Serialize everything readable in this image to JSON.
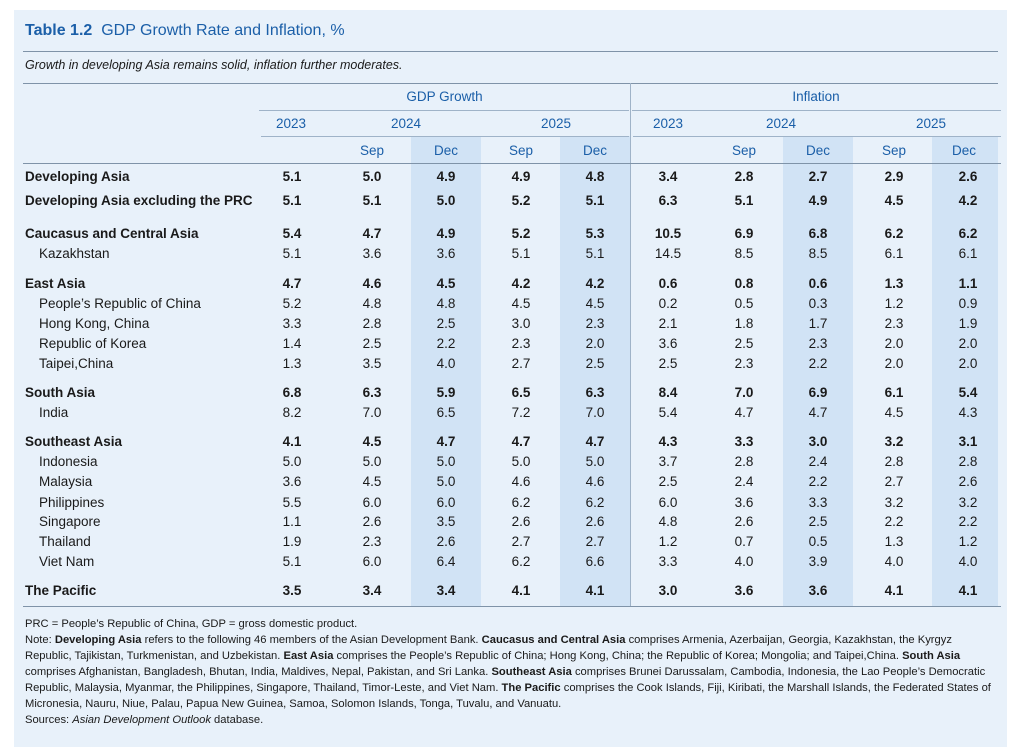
{
  "title": {
    "number": "Table 1.2",
    "text": "GDP Growth Rate and Inflation, %"
  },
  "subtitle": "Growth in developing Asia remains solid, inflation further moderates.",
  "groups": {
    "gdp": "GDP Growth",
    "inflation": "Inflation"
  },
  "years": {
    "y2023": "2023",
    "y2024": "2024",
    "y2025": "2025"
  },
  "months": {
    "sep": "Sep",
    "dec": "Dec"
  },
  "rows": [
    {
      "label": "Developing Asia",
      "bold": true,
      "vals": [
        "5.1",
        "5.0",
        "4.9",
        "4.9",
        "4.8",
        "3.4",
        "2.8",
        "2.7",
        "2.9",
        "2.6"
      ]
    },
    {
      "label": "Developing Asia excluding the PRC",
      "bold": true,
      "vals": [
        "5.1",
        "5.1",
        "5.0",
        "5.2",
        "5.1",
        "6.3",
        "5.1",
        "4.9",
        "4.5",
        "4.2"
      ]
    },
    {
      "label": "Caucasus and Central Asia",
      "bold": true,
      "vals": [
        "5.4",
        "4.7",
        "4.9",
        "5.2",
        "5.3",
        "10.5",
        "6.9",
        "6.8",
        "6.2",
        "6.2"
      ]
    },
    {
      "label": "Kazakhstan",
      "bold": false,
      "vals": [
        "5.1",
        "3.6",
        "3.6",
        "5.1",
        "5.1",
        "14.5",
        "8.5",
        "8.5",
        "6.1",
        "6.1"
      ]
    },
    {
      "label": "East Asia",
      "bold": true,
      "vals": [
        "4.7",
        "4.6",
        "4.5",
        "4.2",
        "4.2",
        "0.6",
        "0.8",
        "0.6",
        "1.3",
        "1.1"
      ]
    },
    {
      "label": "People’s Republic of China",
      "bold": false,
      "vals": [
        "5.2",
        "4.8",
        "4.8",
        "4.5",
        "4.5",
        "0.2",
        "0.5",
        "0.3",
        "1.2",
        "0.9"
      ]
    },
    {
      "label": "Hong Kong, China",
      "bold": false,
      "vals": [
        "3.3",
        "2.8",
        "2.5",
        "3.0",
        "2.3",
        "2.1",
        "1.8",
        "1.7",
        "2.3",
        "1.9"
      ]
    },
    {
      "label": "Republic of Korea",
      "bold": false,
      "vals": [
        "1.4",
        "2.5",
        "2.2",
        "2.3",
        "2.0",
        "3.6",
        "2.5",
        "2.3",
        "2.0",
        "2.0"
      ]
    },
    {
      "label": "Taipei,China",
      "bold": false,
      "vals": [
        "1.3",
        "3.5",
        "4.0",
        "2.7",
        "2.5",
        "2.5",
        "2.3",
        "2.2",
        "2.0",
        "2.0"
      ]
    },
    {
      "label": "South Asia",
      "bold": true,
      "vals": [
        "6.8",
        "6.3",
        "5.9",
        "6.5",
        "6.3",
        "8.4",
        "7.0",
        "6.9",
        "6.1",
        "5.4"
      ]
    },
    {
      "label": "India",
      "bold": false,
      "vals": [
        "8.2",
        "7.0",
        "6.5",
        "7.2",
        "7.0",
        "5.4",
        "4.7",
        "4.7",
        "4.5",
        "4.3"
      ]
    },
    {
      "label": "Southeast Asia",
      "bold": true,
      "vals": [
        "4.1",
        "4.5",
        "4.7",
        "4.7",
        "4.7",
        "4.3",
        "3.3",
        "3.0",
        "3.2",
        "3.1"
      ]
    },
    {
      "label": "Indonesia",
      "bold": false,
      "vals": [
        "5.0",
        "5.0",
        "5.0",
        "5.0",
        "5.0",
        "3.7",
        "2.8",
        "2.4",
        "2.8",
        "2.8"
      ]
    },
    {
      "label": "Malaysia",
      "bold": false,
      "vals": [
        "3.6",
        "4.5",
        "5.0",
        "4.6",
        "4.6",
        "2.5",
        "2.4",
        "2.2",
        "2.7",
        "2.6"
      ]
    },
    {
      "label": "Philippines",
      "bold": false,
      "vals": [
        "5.5",
        "6.0",
        "6.0",
        "6.2",
        "6.2",
        "6.0",
        "3.6",
        "3.3",
        "3.2",
        "3.2"
      ]
    },
    {
      "label": "Singapore",
      "bold": false,
      "vals": [
        "1.1",
        "2.6",
        "3.5",
        "2.6",
        "2.6",
        "4.8",
        "2.6",
        "2.5",
        "2.2",
        "2.2"
      ]
    },
    {
      "label": "Thailand",
      "bold": false,
      "vals": [
        "1.9",
        "2.3",
        "2.6",
        "2.7",
        "2.7",
        "1.2",
        "0.7",
        "0.5",
        "1.3",
        "1.2"
      ]
    },
    {
      "label": "Viet Nam",
      "bold": false,
      "vals": [
        "5.1",
        "6.0",
        "6.4",
        "6.2",
        "6.6",
        "3.3",
        "4.0",
        "3.9",
        "4.0",
        "4.0"
      ]
    },
    {
      "label": "The Pacific",
      "bold": true,
      "vals": [
        "3.5",
        "3.4",
        "3.4",
        "4.1",
        "4.1",
        "3.0",
        "3.6",
        "3.6",
        "4.1",
        "4.1"
      ]
    }
  ],
  "notes": {
    "abbrev": "PRC = People’s Republic of China, GDP = gross domestic product.",
    "note_prefix": "Note: ",
    "parts": [
      {
        "b": "Developing Asia",
        "t": " refers to the following 46 members of the Asian Development Bank. "
      },
      {
        "b": "Caucasus and Central Asia",
        "t": " comprises Armenia, Azerbaijan, Georgia, Kazakhstan, the Kyrgyz Republic, Tajikistan, Turkmenistan, and Uzbekistan. "
      },
      {
        "b": "East Asia",
        "t": " comprises the People’s Republic of China; Hong Kong, China; the Republic of Korea; Mongolia; and Taipei,China. "
      },
      {
        "b": "South Asia",
        "t": " comprises Afghanistan, Bangladesh, Bhutan, India, Maldives, Nepal, Pakistan, and Sri Lanka. "
      },
      {
        "b": "Southeast Asia",
        "t": " comprises Brunei Darussalam, Cambodia, Indonesia, the Lao People’s Democratic Republic, Malaysia, Myanmar, the Philippines, Singapore, Thailand, Timor-Leste, and Viet Nam. "
      },
      {
        "b": "The Pacific",
        "t": " comprises the Cook Islands, Fiji, Kiribati, the Marshall Islands, the Federated States of Micronesia, Nauru, Niue, Palau, Papua New Guinea, Samoa, Solomon Islands, Tonga, Tuvalu, and Vanuatu."
      }
    ],
    "sources_prefix": "Sources: ",
    "sources_italic": "Asian Development Outlook",
    "sources_suffix": " database."
  }
}
